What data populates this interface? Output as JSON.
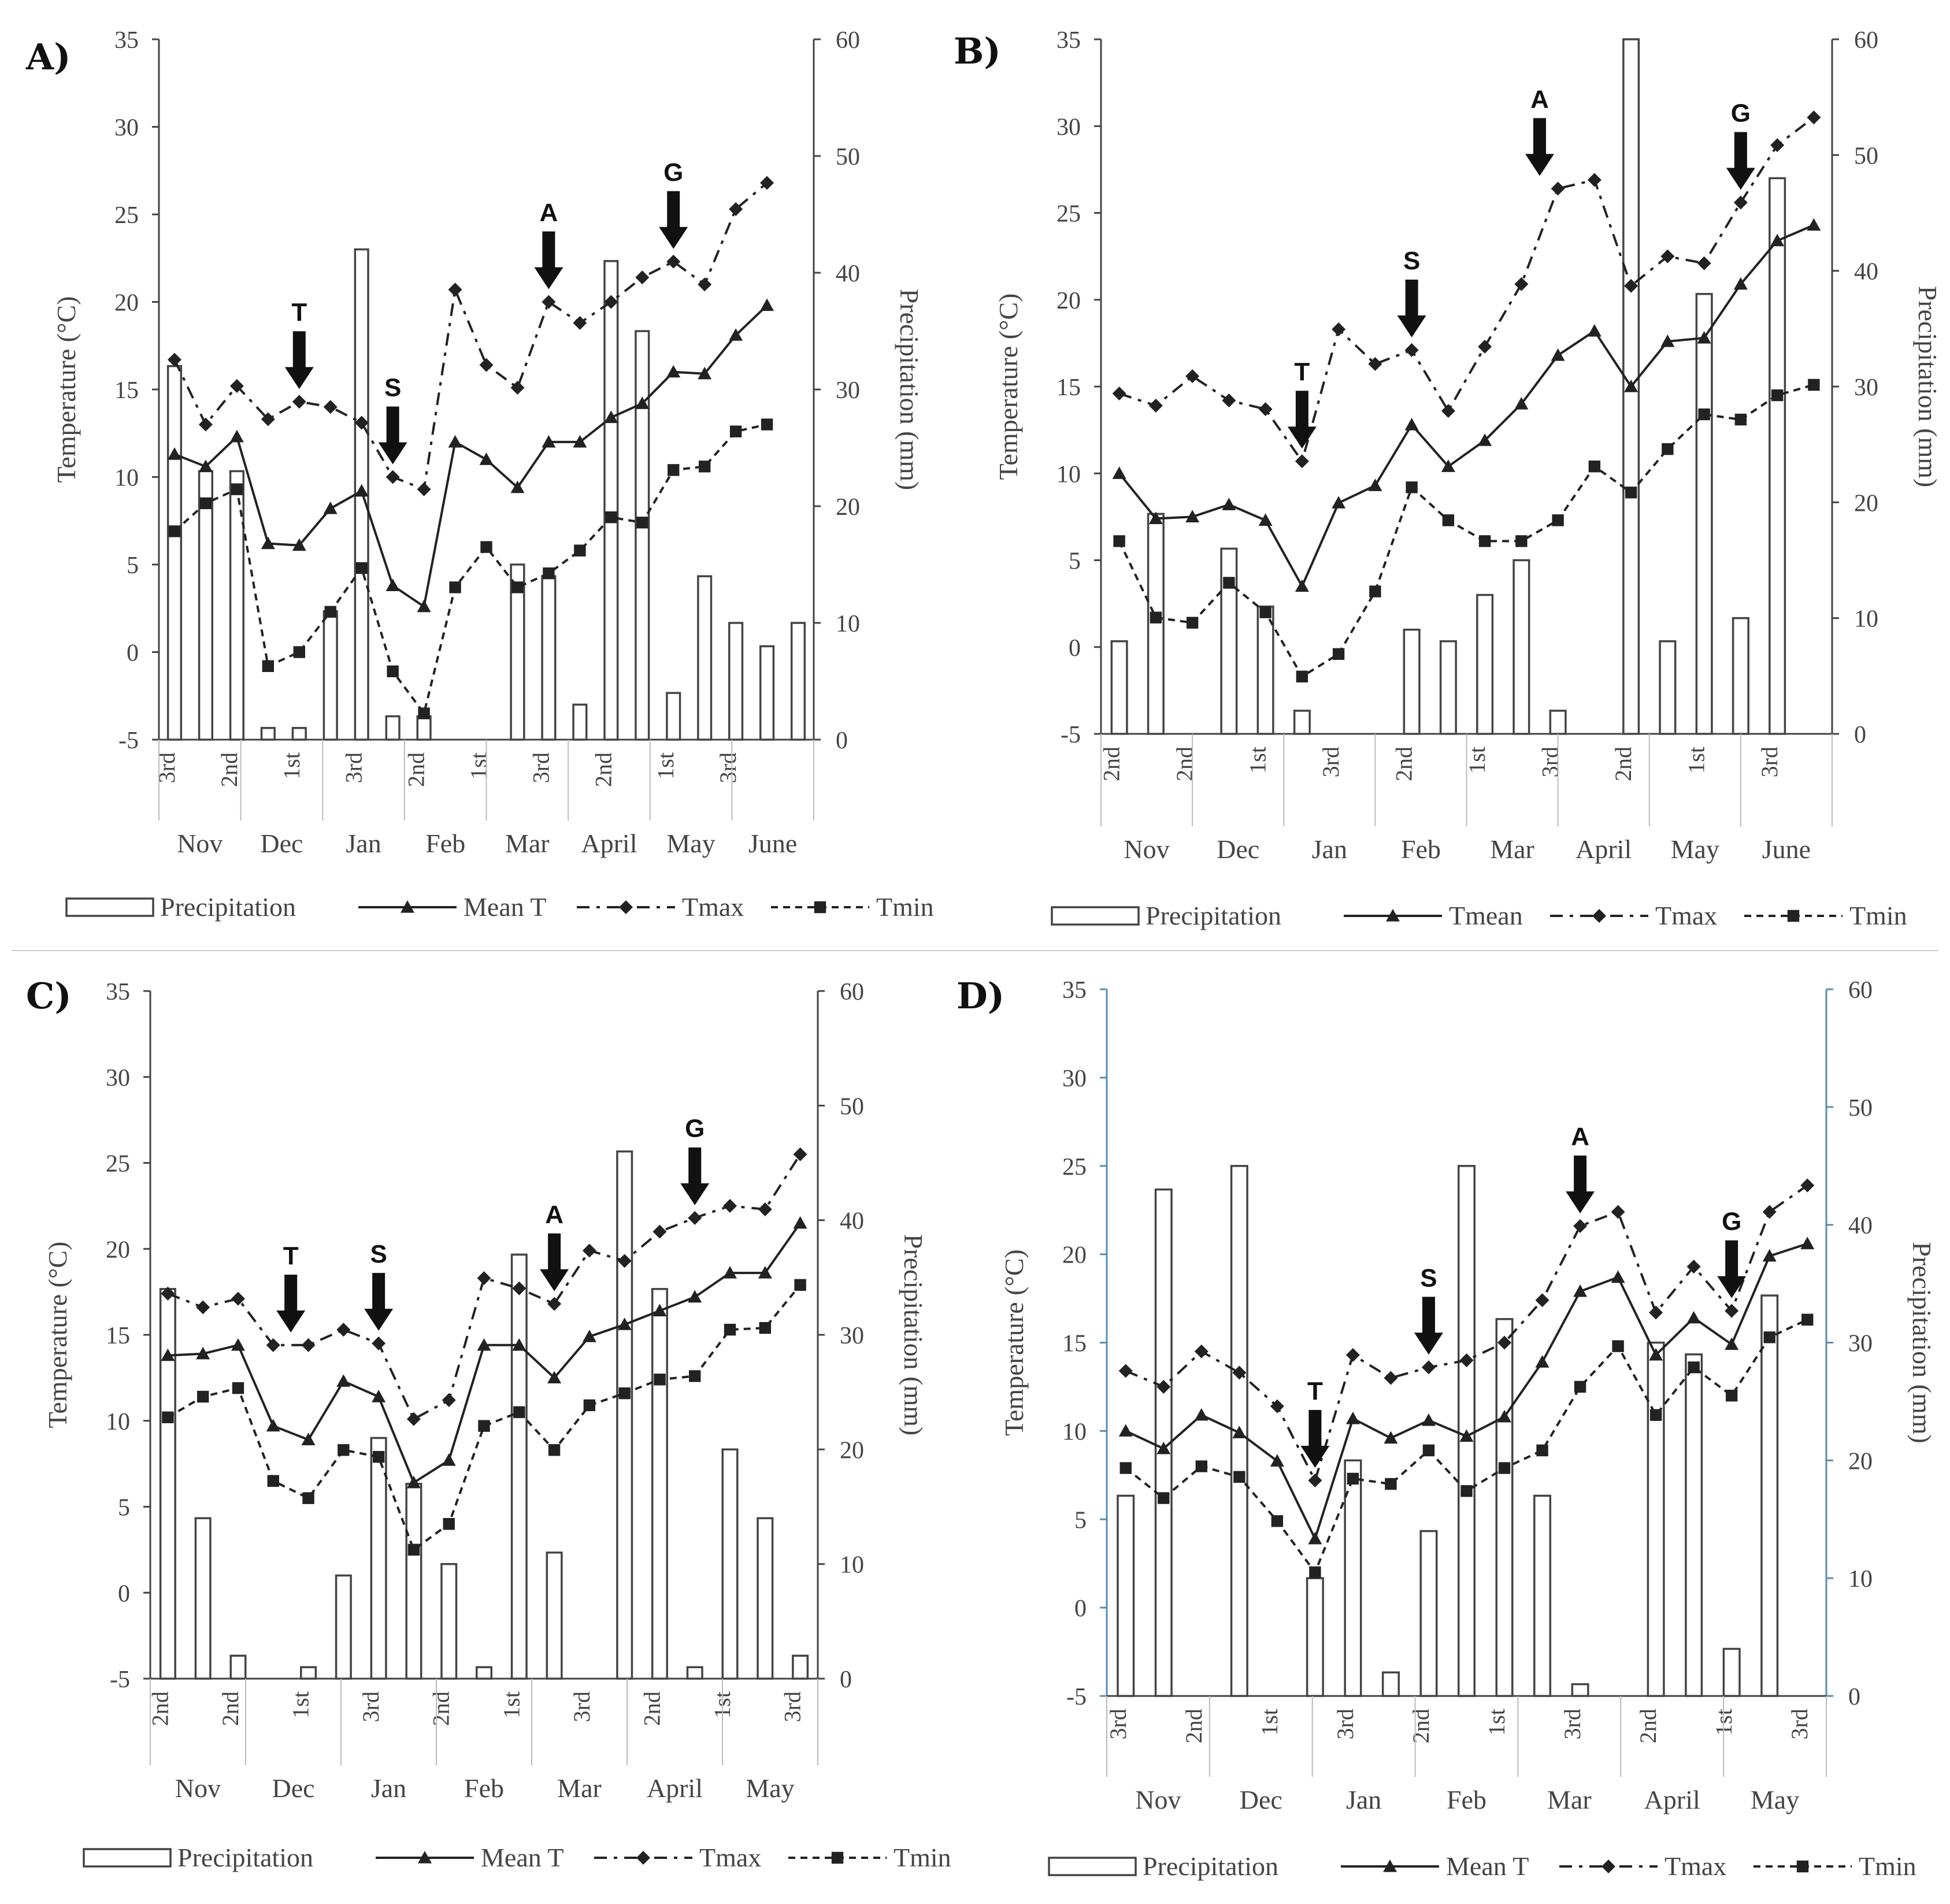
{
  "figure": {
    "background": "#ffffff"
  },
  "colors": {
    "bar_fill": "#ffffff",
    "bar_stroke": "#444444",
    "line": "#222222",
    "axis": "#444444",
    "axis_blue": "#5a8db0",
    "arrow": "#111111"
  },
  "chart_data": [
    {
      "type": "bar+line",
      "panel_label": "A)",
      "ylabel_left": "Temperature (°C)",
      "ylabel_right": "Precipitation (mm)",
      "ylim_left": [
        -5,
        35
      ],
      "yticks_left": [
        -5,
        0,
        5,
        10,
        15,
        20,
        25,
        30,
        35
      ],
      "ylim_right": [
        0,
        60
      ],
      "yticks_right": [
        0,
        10,
        20,
        30,
        40,
        50,
        60
      ],
      "x_tick_labels": [
        "3rd",
        "2nd",
        "1st",
        "3rd",
        "2nd",
        "1st",
        "3rd",
        "2nd",
        "1st",
        "3rd"
      ],
      "x_tick_index": [
        0,
        2,
        4,
        6,
        8,
        10,
        12,
        14,
        16,
        18
      ],
      "months": [
        "Nov",
        "Dec",
        "Jan",
        "Feb",
        "Mar",
        "April",
        "May",
        "June"
      ],
      "legend": [
        "Precipitation",
        "Mean T",
        "Tmax",
        "Tmin"
      ],
      "precipitation": [
        32,
        23,
        23,
        1,
        1,
        11,
        42,
        2,
        2,
        0,
        0,
        15,
        14,
        3,
        41,
        35,
        4,
        14,
        10,
        8,
        10
      ],
      "mean_t": [
        11.3,
        10.6,
        12.3,
        6.2,
        6.1,
        8.2,
        9.2,
        3.8,
        2.6,
        12.0,
        11.0,
        9.4,
        12.0,
        12.0,
        13.4,
        14.2,
        16.0,
        15.9,
        18.1,
        19.8,
        null
      ],
      "tmax": [
        16.7,
        13.0,
        15.2,
        13.3,
        14.3,
        14.0,
        13.1,
        10.0,
        9.3,
        20.7,
        16.4,
        15.1,
        20.0,
        18.8,
        20.0,
        21.4,
        22.3,
        21.0,
        25.3,
        26.8,
        null
      ],
      "tmin": [
        6.9,
        8.5,
        9.3,
        -0.8,
        0.0,
        2.3,
        4.8,
        -1.1,
        -3.5,
        3.7,
        6.0,
        3.7,
        4.5,
        5.8,
        7.7,
        7.4,
        10.4,
        10.6,
        12.6,
        13.0,
        null
      ],
      "annotations": [
        {
          "label": "T",
          "x": 4
        },
        {
          "label": "S",
          "x": 7
        },
        {
          "label": "A",
          "x": 12
        },
        {
          "label": "G",
          "x": 16
        }
      ]
    },
    {
      "type": "bar+line",
      "panel_label": "B)",
      "ylabel_left": "Temperature (°C)",
      "ylabel_right": "Precipitation (mm)",
      "ylim_left": [
        -5,
        35
      ],
      "yticks_left": [
        -5,
        0,
        5,
        10,
        15,
        20,
        25,
        30,
        35
      ],
      "ylim_right": [
        0,
        60
      ],
      "yticks_right": [
        0,
        10,
        20,
        30,
        40,
        50,
        60
      ],
      "x_tick_labels": [
        "2nd",
        "2nd",
        "1st",
        "3rd",
        "2nd",
        "1st",
        "3rd",
        "2nd",
        "1st",
        "3rd"
      ],
      "x_tick_index": [
        0,
        2,
        4,
        6,
        8,
        10,
        12,
        14,
        16,
        18
      ],
      "months": [
        "Nov",
        "Dec",
        "Jan",
        "Feb",
        "Mar",
        "April",
        "May",
        "June"
      ],
      "legend": [
        "Precipitation",
        "Tmean",
        "Tmax",
        "Tmin"
      ],
      "precipitation": [
        8,
        19,
        0,
        16,
        11,
        2,
        0,
        0,
        9,
        8,
        12,
        15,
        2,
        0,
        60,
        8,
        38,
        10,
        48,
        null
      ],
      "mean_t": [
        10.0,
        7.4,
        7.5,
        8.2,
        7.3,
        3.5,
        8.3,
        9.3,
        12.8,
        10.4,
        11.9,
        14.0,
        16.8,
        18.2,
        15.0,
        17.6,
        17.8,
        20.9,
        23.4,
        24.3
      ],
      "tmax": [
        14.6,
        13.9,
        15.6,
        14.2,
        13.7,
        10.7,
        18.3,
        16.3,
        17.1,
        13.6,
        17.3,
        20.9,
        26.4,
        26.9,
        20.8,
        22.5,
        22.1,
        25.6,
        28.9,
        30.5
      ],
      "tmin": [
        6.1,
        1.7,
        1.4,
        3.7,
        2.0,
        -1.7,
        -0.4,
        3.2,
        9.2,
        7.3,
        6.1,
        6.1,
        7.3,
        10.4,
        8.9,
        11.4,
        13.4,
        13.1,
        14.5,
        15.1
      ],
      "annotations": [
        {
          "label": "T",
          "x": 5
        },
        {
          "label": "S",
          "x": 8
        },
        {
          "label": "A",
          "x": 11.5
        },
        {
          "label": "G",
          "x": 17
        }
      ]
    },
    {
      "type": "bar+line",
      "panel_label": "C)",
      "ylabel_left": "Temperature (°C)",
      "ylabel_right": "Precipitation (mm)",
      "ylim_left": [
        -5,
        35
      ],
      "yticks_left": [
        -5,
        0,
        5,
        10,
        15,
        20,
        25,
        30,
        35
      ],
      "ylim_right": [
        0,
        60
      ],
      "yticks_right": [
        0,
        10,
        20,
        30,
        40,
        50,
        60
      ],
      "x_tick_labels": [
        "2nd",
        "2nd",
        "1st",
        "3rd",
        "2nd",
        "1st",
        "3rd",
        "2nd",
        "1st",
        "3rd"
      ],
      "x_tick_index": [
        0,
        2,
        4,
        6,
        8,
        10,
        12,
        14,
        16,
        18
      ],
      "months": [
        "Nov",
        "Dec",
        "Jan",
        "Feb",
        "Mar",
        "April",
        "May"
      ],
      "legend": [
        "Precipitation",
        "Mean T",
        "Tmax",
        "Tmin"
      ],
      "precipitation": [
        34,
        14,
        2,
        0,
        1,
        9,
        21,
        17,
        10,
        1,
        37,
        11,
        0,
        46,
        34,
        1,
        20,
        14,
        2
      ],
      "mean_t": [
        13.8,
        13.9,
        14.4,
        9.7,
        8.9,
        12.3,
        11.4,
        6.4,
        7.7,
        14.4,
        14.4,
        12.5,
        14.9,
        15.6,
        16.4,
        17.2,
        18.6,
        18.6,
        21.5
      ],
      "tmax": [
        17.4,
        16.6,
        17.1,
        14.4,
        14.4,
        15.3,
        14.5,
        10.1,
        11.2,
        18.3,
        17.7,
        16.8,
        19.9,
        19.3,
        21.0,
        21.8,
        22.5,
        22.3,
        25.5
      ],
      "tmin": [
        10.2,
        11.4,
        11.9,
        6.5,
        5.5,
        8.3,
        7.9,
        2.5,
        4.0,
        9.7,
        10.5,
        8.3,
        10.9,
        11.6,
        12.4,
        12.6,
        15.3,
        15.4,
        17.9
      ],
      "annotations": [
        {
          "label": "T",
          "x": 3.5
        },
        {
          "label": "S",
          "x": 6
        },
        {
          "label": "A",
          "x": 11
        },
        {
          "label": "G",
          "x": 15
        }
      ]
    },
    {
      "type": "bar+line",
      "panel_label": "D)",
      "ylabel_left": "Temperature (°C)",
      "ylabel_right": "Precipitation (mm)",
      "ylim_left": [
        -5,
        35
      ],
      "yticks_left": [
        -5,
        0,
        5,
        10,
        15,
        20,
        25,
        30,
        35
      ],
      "ylim_right": [
        0,
        60
      ],
      "yticks_right": [
        0,
        10,
        20,
        30,
        40,
        50,
        60
      ],
      "x_tick_labels": [
        "3rd",
        "2nd",
        "1st",
        "3rd",
        "2nd",
        "1st",
        "3rd",
        "2nd",
        "1st",
        "3rd"
      ],
      "x_tick_index": [
        0,
        2,
        4,
        6,
        8,
        10,
        12,
        14,
        16,
        18
      ],
      "months": [
        "Nov",
        "Dec",
        "Jan",
        "Feb",
        "Mar",
        "April",
        "May"
      ],
      "legend": [
        "Precipitation",
        "Mean T",
        "Tmax",
        "Tmin"
      ],
      "precipitation": [
        17,
        43,
        0,
        45,
        0,
        10,
        20,
        2,
        14,
        45,
        32,
        17,
        1,
        0,
        30,
        29,
        4,
        34,
        0
      ],
      "mean_t": [
        10.0,
        9.0,
        10.9,
        9.9,
        8.3,
        3.9,
        10.7,
        9.6,
        10.6,
        9.7,
        10.8,
        13.9,
        17.9,
        18.7,
        14.3,
        16.4,
        14.9,
        19.9,
        20.6
      ],
      "tmax": [
        13.4,
        12.5,
        14.5,
        13.3,
        11.4,
        7.2,
        14.3,
        13.0,
        13.6,
        14.0,
        15.0,
        17.4,
        21.6,
        22.4,
        16.7,
        19.3,
        16.8,
        22.4,
        23.9
      ],
      "tmin": [
        7.9,
        6.2,
        8.0,
        7.4,
        4.9,
        2.0,
        7.3,
        7.0,
        8.9,
        6.6,
        7.9,
        8.9,
        12.5,
        14.8,
        10.9,
        13.6,
        12.0,
        15.3,
        16.3
      ],
      "annotations": [
        {
          "label": "T",
          "x": 5
        },
        {
          "label": "S",
          "x": 8
        },
        {
          "label": "A",
          "x": 12
        },
        {
          "label": "G",
          "x": 16
        }
      ]
    }
  ]
}
